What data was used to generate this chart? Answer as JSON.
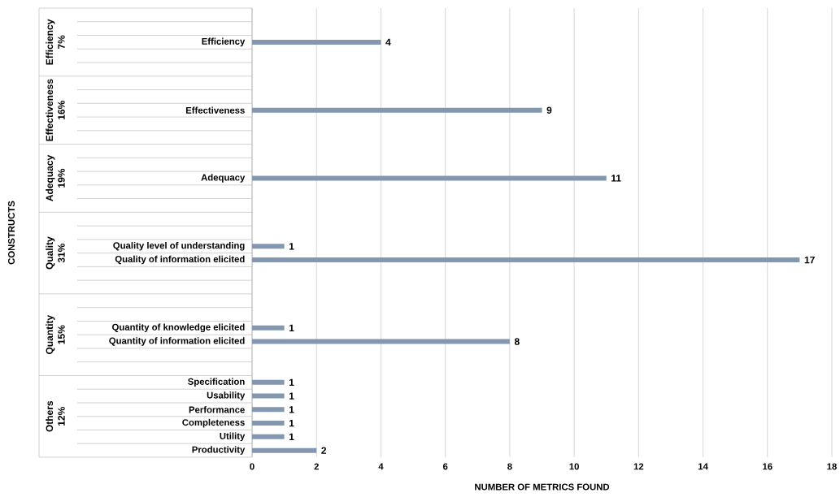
{
  "chart_data": {
    "type": "bar",
    "orientation": "horizontal",
    "xlabel": "NUMBER OF METRICS FOUND",
    "categories": [
      null,
      null,
      "Efficiency",
      null,
      null,
      null,
      null,
      "Effectiveness",
      null,
      null,
      null,
      null,
      "Adequacy",
      null,
      null,
      null,
      null,
      "Quality level of understanding",
      "Quality of information elicited",
      null,
      null,
      null,
      null,
      "Quantity of knowledge elicited",
      "Quantity of information elicited",
      null,
      null,
      "Specification",
      "Usability",
      "Performance",
      "Completeness",
      "Utility",
      "Productivity"
    ],
    "values": [
      null,
      null,
      4,
      null,
      null,
      null,
      null,
      9,
      null,
      null,
      null,
      null,
      11,
      null,
      null,
      null,
      null,
      1,
      17,
      null,
      null,
      null,
      null,
      1,
      8,
      null,
      null,
      1,
      1,
      1,
      1,
      1,
      2
    ],
    "color": "#8497b0",
    "data_labels": true,
    "xlim": [
      0,
      18
    ],
    "xticks": [
      0,
      2,
      4,
      6,
      8,
      10,
      12,
      14,
      16,
      18
    ],
    "grid": "x",
    "annotations": [
      "CONSTRUCTS",
      "Efficiency",
      "7%",
      "Effectiveness",
      "16%",
      "Adequacy",
      "19%",
      "Quality",
      "31%",
      "Quantity",
      "15%",
      "Others",
      "12%"
    ]
  }
}
